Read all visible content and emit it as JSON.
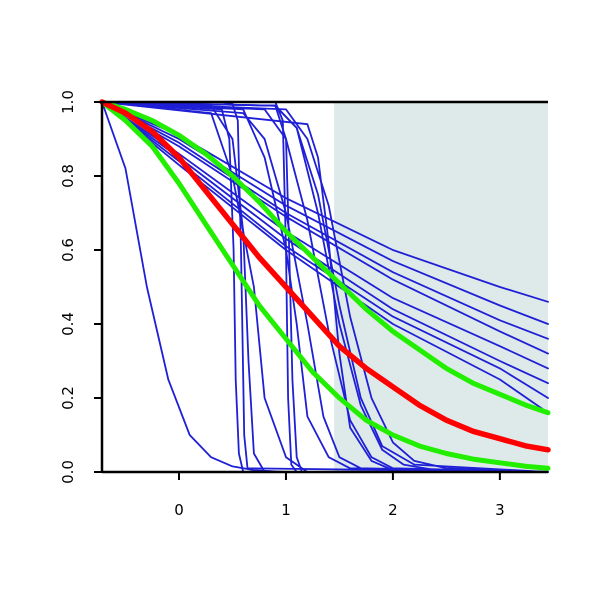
{
  "chart_data": {
    "type": "line",
    "title": "",
    "xlabel": "",
    "ylabel": "",
    "xlim": [
      -0.72,
      3.45
    ],
    "ylim": [
      0,
      1
    ],
    "x_ticks": [
      0,
      1,
      2,
      3
    ],
    "y_ticks": [
      0.0,
      0.2,
      0.4,
      0.6,
      0.8,
      1.0
    ],
    "x_tick_labels": [
      "0",
      "1",
      "2",
      "3"
    ],
    "y_tick_labels": [
      "0.0",
      "0.2",
      "0.4",
      "0.6",
      "0.8",
      "1.0"
    ],
    "grid": false,
    "legend": "none",
    "shaded_region": {
      "x": [
        1.45,
        3.45
      ],
      "y": [
        0,
        1
      ],
      "color": "#deeaea"
    },
    "colors": {
      "blue": "#1f1fd6",
      "red": "#ff0000",
      "green": "#22ee00",
      "shade": "#deeaea"
    },
    "series": [
      {
        "color": "blue",
        "width": 1.8,
        "x": [
          -0.72,
          -0.5,
          -0.3,
          -0.1,
          0.1,
          0.3,
          0.5,
          0.7,
          1.0
        ],
        "y": [
          1.0,
          0.82,
          0.5,
          0.25,
          0.1,
          0.04,
          0.015,
          0.005,
          0.0
        ]
      },
      {
        "color": "blue",
        "width": 1.8,
        "x": [
          -0.72,
          0.4,
          0.5,
          0.55,
          0.58,
          0.61,
          0.64,
          3.45
        ],
        "y": [
          1.0,
          1.0,
          0.995,
          0.95,
          0.6,
          0.1,
          0.01,
          0.0
        ]
      },
      {
        "color": "blue",
        "width": 1.8,
        "x": [
          -0.72,
          0.4,
          0.47,
          0.51,
          0.53,
          0.56,
          0.6,
          3.45
        ],
        "y": [
          1.0,
          0.98,
          0.9,
          0.6,
          0.25,
          0.05,
          0.0,
          0.0
        ]
      },
      {
        "color": "blue",
        "width": 1.8,
        "x": [
          -0.72,
          0.3,
          0.5,
          0.6,
          0.65,
          0.7,
          0.8,
          3.45
        ],
        "y": [
          1.0,
          0.99,
          0.9,
          0.65,
          0.3,
          0.05,
          0.0,
          0.0
        ]
      },
      {
        "color": "blue",
        "width": 1.8,
        "x": [
          -0.72,
          0.3,
          0.5,
          0.7,
          0.8,
          1.0,
          1.2,
          3.45
        ],
        "y": [
          1.0,
          0.97,
          0.8,
          0.5,
          0.2,
          0.04,
          0.0,
          0.0
        ]
      },
      {
        "color": "blue",
        "width": 1.8,
        "x": [
          -0.72,
          0.9,
          0.97,
          1.0,
          1.02,
          1.05,
          1.1,
          3.45
        ],
        "y": [
          1.0,
          1.0,
          0.95,
          0.6,
          0.2,
          0.02,
          0.0,
          0.0
        ]
      },
      {
        "color": "blue",
        "width": 1.8,
        "x": [
          -0.72,
          0.9,
          1.0,
          1.03,
          1.06,
          1.1,
          1.15,
          3.45
        ],
        "y": [
          1.0,
          0.99,
          0.9,
          0.6,
          0.25,
          0.04,
          0.0,
          0.0
        ]
      },
      {
        "color": "blue",
        "width": 1.8,
        "x": [
          -0.72,
          0.6,
          0.8,
          1.0,
          1.1,
          1.2,
          1.4,
          1.6,
          3.45
        ],
        "y": [
          1.0,
          0.98,
          0.85,
          0.6,
          0.4,
          0.15,
          0.04,
          0.01,
          0.0
        ]
      },
      {
        "color": "blue",
        "width": 1.8,
        "x": [
          -0.72,
          0.6,
          0.8,
          1.0,
          1.2,
          1.35,
          1.5,
          1.7,
          3.45
        ],
        "y": [
          1.0,
          0.97,
          0.9,
          0.7,
          0.4,
          0.15,
          0.04,
          0.01,
          0.0
        ]
      },
      {
        "color": "blue",
        "width": 1.8,
        "x": [
          -0.72,
          0.8,
          1.0,
          1.2,
          1.4,
          1.6,
          1.8,
          2.0,
          3.45
        ],
        "y": [
          1.0,
          0.98,
          0.9,
          0.68,
          0.38,
          0.14,
          0.04,
          0.01,
          0.0
        ]
      },
      {
        "color": "blue",
        "width": 1.8,
        "x": [
          -0.72,
          0.9,
          1.1,
          1.3,
          1.5,
          1.7,
          1.9,
          2.2,
          3.45
        ],
        "y": [
          1.0,
          0.99,
          0.93,
          0.75,
          0.45,
          0.2,
          0.07,
          0.02,
          0.0
        ]
      },
      {
        "color": "blue",
        "width": 1.8,
        "x": [
          -0.72,
          0.9,
          1.1,
          1.3,
          1.5,
          1.7,
          1.9,
          2.1,
          2.4,
          3.45
        ],
        "y": [
          1.0,
          0.99,
          0.93,
          0.7,
          0.4,
          0.18,
          0.06,
          0.02,
          0.005,
          0.0
        ]
      },
      {
        "color": "blue",
        "width": 1.8,
        "x": [
          -0.72,
          1.0,
          1.2,
          1.4,
          1.6,
          1.8,
          2.0,
          2.2,
          2.5,
          3.45
        ],
        "y": [
          1.0,
          0.98,
          0.9,
          0.72,
          0.42,
          0.2,
          0.08,
          0.03,
          0.01,
          0.0
        ]
      },
      {
        "color": "blue",
        "width": 1.8,
        "x": [
          -0.72,
          1.2,
          1.3,
          1.4,
          1.5,
          1.6,
          1.8,
          2.0,
          3.45
        ],
        "y": [
          1.0,
          0.94,
          0.85,
          0.62,
          0.32,
          0.12,
          0.03,
          0.005,
          0.0
        ]
      },
      {
        "color": "blue",
        "width": 1.8,
        "x": [
          -0.72,
          0.0,
          1.0,
          2.0,
          3.0,
          3.45
        ],
        "y": [
          1.0,
          0.91,
          0.74,
          0.6,
          0.5,
          0.46
        ]
      },
      {
        "color": "blue",
        "width": 1.8,
        "x": [
          -0.72,
          0.0,
          1.0,
          2.0,
          3.0,
          3.45
        ],
        "y": [
          1.0,
          0.9,
          0.72,
          0.57,
          0.45,
          0.4
        ]
      },
      {
        "color": "blue",
        "width": 1.8,
        "x": [
          -0.72,
          0.0,
          1.0,
          2.0,
          3.0,
          3.45
        ],
        "y": [
          1.0,
          0.89,
          0.7,
          0.54,
          0.41,
          0.36
        ]
      },
      {
        "color": "blue",
        "width": 1.8,
        "x": [
          -0.72,
          0.0,
          1.0,
          2.0,
          3.0,
          3.45
        ],
        "y": [
          1.0,
          0.88,
          0.69,
          0.52,
          0.38,
          0.32
        ]
      },
      {
        "color": "blue",
        "width": 1.8,
        "x": [
          -0.72,
          0.0,
          1.0,
          2.0,
          3.0,
          3.45
        ],
        "y": [
          1.0,
          0.86,
          0.65,
          0.47,
          0.34,
          0.28
        ]
      },
      {
        "color": "blue",
        "width": 1.8,
        "x": [
          -0.72,
          0.0,
          1.0,
          2.0,
          3.0,
          3.45
        ],
        "y": [
          1.0,
          0.85,
          0.63,
          0.44,
          0.3,
          0.24
        ]
      },
      {
        "color": "blue",
        "width": 1.8,
        "x": [
          -0.72,
          0.0,
          1.0,
          2.0,
          3.0,
          3.45
        ],
        "y": [
          1.0,
          0.84,
          0.61,
          0.42,
          0.28,
          0.2
        ]
      },
      {
        "color": "blue",
        "width": 1.8,
        "x": [
          -0.72,
          0.0,
          1.0,
          2.0,
          3.0,
          3.45
        ],
        "y": [
          1.0,
          0.83,
          0.6,
          0.4,
          0.25,
          0.16
        ]
      },
      {
        "color": "green",
        "width": 5,
        "x": [
          -0.72,
          -0.5,
          -0.25,
          0.0,
          0.25,
          0.5,
          0.75,
          1.0,
          1.25,
          1.5,
          1.75,
          2.0,
          2.25,
          2.5,
          2.75,
          3.0,
          3.25,
          3.45
        ],
        "y": [
          1.0,
          0.98,
          0.95,
          0.91,
          0.86,
          0.8,
          0.73,
          0.65,
          0.58,
          0.51,
          0.44,
          0.38,
          0.33,
          0.28,
          0.24,
          0.21,
          0.18,
          0.16
        ]
      },
      {
        "color": "green",
        "width": 5,
        "x": [
          -0.72,
          -0.5,
          -0.25,
          0.0,
          0.25,
          0.5,
          0.75,
          1.0,
          1.25,
          1.5,
          1.75,
          2.0,
          2.25,
          2.5,
          2.75,
          3.0,
          3.25,
          3.45
        ],
        "y": [
          1.0,
          0.95,
          0.88,
          0.78,
          0.67,
          0.56,
          0.45,
          0.36,
          0.27,
          0.2,
          0.14,
          0.1,
          0.07,
          0.05,
          0.035,
          0.025,
          0.015,
          0.01
        ]
      },
      {
        "color": "red",
        "width": 5.5,
        "x": [
          -0.72,
          -0.5,
          -0.25,
          0.0,
          0.25,
          0.5,
          0.75,
          1.0,
          1.25,
          1.5,
          1.75,
          2.0,
          2.25,
          2.5,
          2.75,
          3.0,
          3.25,
          3.45
        ],
        "y": [
          1.0,
          0.97,
          0.92,
          0.85,
          0.76,
          0.67,
          0.58,
          0.5,
          0.42,
          0.34,
          0.28,
          0.23,
          0.18,
          0.14,
          0.11,
          0.09,
          0.07,
          0.06
        ]
      }
    ]
  }
}
